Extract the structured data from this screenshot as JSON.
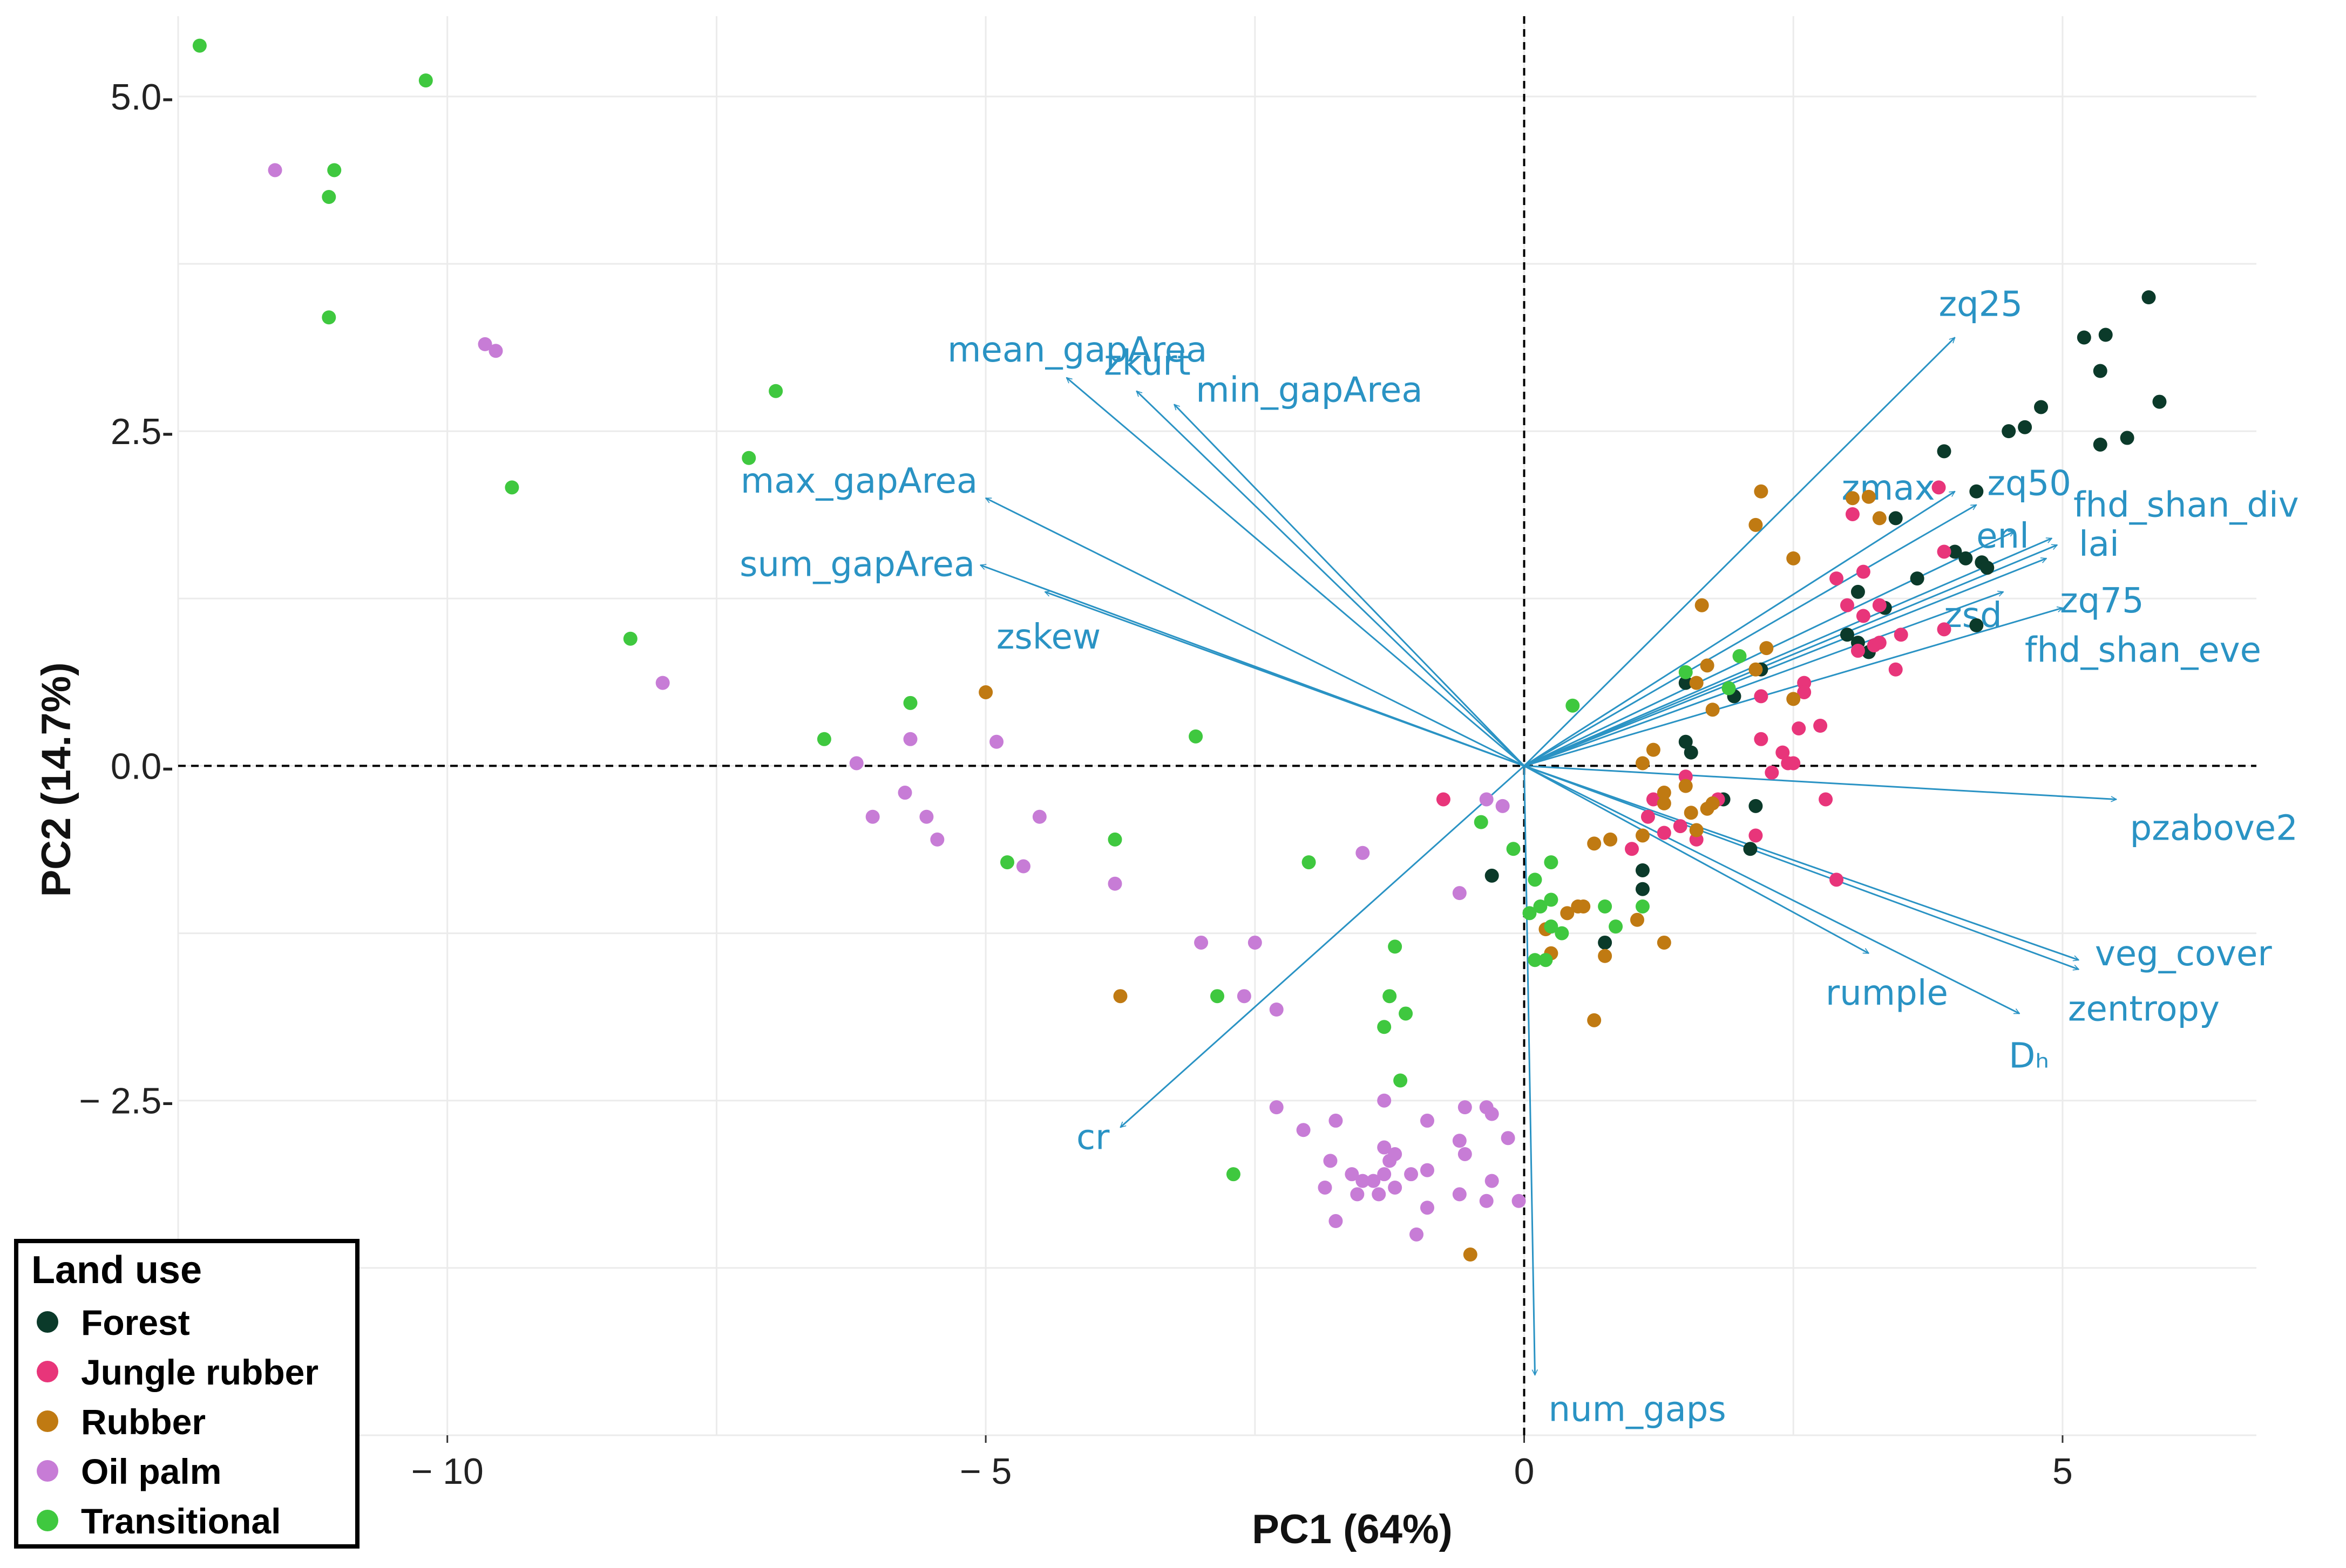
{
  "chart_data": {
    "type": "scatter",
    "subtype": "pca-biplot",
    "xlabel": "PC1 (64%)",
    "ylabel": "PC2 (14.7%)",
    "xlim": [
      -12.5,
      6.8
    ],
    "ylim": [
      -5.0,
      5.6
    ],
    "xticks": [
      -10,
      -5,
      0,
      5
    ],
    "xtick_labels": [
      "− 10",
      "− 5",
      "0",
      "5"
    ],
    "yticks": [
      -2.5,
      0.0,
      2.5,
      5.0
    ],
    "ytick_labels": [
      "− 2.5-",
      "0.0-",
      "2.5-",
      "5.0-"
    ],
    "zero_lines": "dashed",
    "legend": {
      "title": "Land use",
      "placement": "bottom-left",
      "entries": [
        {
          "key": "forest",
          "label": "Forest",
          "color": "#0b3a2a"
        },
        {
          "key": "jungle",
          "label": "Jungle rubber",
          "color": "#e8357a"
        },
        {
          "key": "rubber",
          "label": "Rubber",
          "color": "#c07a12"
        },
        {
          "key": "oilpalm",
          "label": "Oil palm",
          "color": "#c77cd6"
        },
        {
          "key": "transitional",
          "label": "Transitional",
          "color": "#3fc83f"
        }
      ]
    },
    "vector_color": "#2a93c4",
    "vectors": [
      {
        "label": "zq25",
        "x": 4.0,
        "y": 3.2
      },
      {
        "label": "zq50",
        "x": 4.2,
        "y": 1.95
      },
      {
        "label": "zmax",
        "x": 4.0,
        "y": 2.05
      },
      {
        "label": "enl",
        "x": 4.55,
        "y": 1.75
      },
      {
        "label": "fhd_shan_div",
        "x": 4.9,
        "y": 1.7
      },
      {
        "label": "lai",
        "x": 4.95,
        "y": 1.65
      },
      {
        "label": "zq75",
        "x": 4.85,
        "y": 1.55
      },
      {
        "label": "zsd",
        "x": 4.45,
        "y": 1.3
      },
      {
        "label": "fhd_shan_eve",
        "x": 5.0,
        "y": 1.18
      },
      {
        "label": "pzabove2",
        "x": 5.5,
        "y": -0.25
      },
      {
        "label": "veg_cover",
        "x": 5.15,
        "y": -1.45
      },
      {
        "label": "zentropy",
        "x": 5.15,
        "y": -1.52
      },
      {
        "label": "rumple",
        "x": 3.2,
        "y": -1.4
      },
      {
        "label": "Dₕ",
        "x": 4.6,
        "y": -1.85
      },
      {
        "label": "num_gaps",
        "x": 0.1,
        "y": -4.55
      },
      {
        "label": "cr",
        "x": -3.75,
        "y": -2.7
      },
      {
        "label": "zskew",
        "x": -4.45,
        "y": 1.3
      },
      {
        "label": "sum_gapArea",
        "x": -5.05,
        "y": 1.5
      },
      {
        "label": "max_gapArea",
        "x": -5.0,
        "y": 2.0
      },
      {
        "label": "mean_gapArea",
        "x": -4.25,
        "y": 2.9
      },
      {
        "label": "zkurt",
        "x": -3.6,
        "y": 2.8
      },
      {
        "label": "min_gapArea",
        "x": -3.25,
        "y": 2.7
      }
    ],
    "series": [
      {
        "name": "Forest",
        "points": [
          [
            5.8,
            3.5
          ],
          [
            5.2,
            3.2
          ],
          [
            5.4,
            3.22
          ],
          [
            5.35,
            2.95
          ],
          [
            4.8,
            2.68
          ],
          [
            4.65,
            2.53
          ],
          [
            5.35,
            2.4
          ],
          [
            5.6,
            2.45
          ],
          [
            5.9,
            2.72
          ],
          [
            4.5,
            2.5
          ],
          [
            3.9,
            2.35
          ],
          [
            4.2,
            2.05
          ],
          [
            3.45,
            1.85
          ],
          [
            4.0,
            1.6
          ],
          [
            4.1,
            1.55
          ],
          [
            4.25,
            1.52
          ],
          [
            4.3,
            1.48
          ],
          [
            3.65,
            1.4
          ],
          [
            3.1,
            1.3
          ],
          [
            3.35,
            1.18
          ],
          [
            4.2,
            1.05
          ],
          [
            3.1,
            0.92
          ],
          [
            3.0,
            0.98
          ],
          [
            3.2,
            0.85
          ],
          [
            2.2,
            0.72
          ],
          [
            1.95,
            0.52
          ],
          [
            1.5,
            0.62
          ],
          [
            1.5,
            0.18
          ],
          [
            1.55,
            0.1
          ],
          [
            1.85,
            -0.25
          ],
          [
            2.15,
            -0.3
          ],
          [
            2.1,
            -0.62
          ],
          [
            1.1,
            -0.78
          ],
          [
            1.1,
            -0.92
          ],
          [
            0.75,
            -1.32
          ],
          [
            -0.3,
            -0.82
          ]
        ]
      },
      {
        "name": "Jungle rubber",
        "points": [
          [
            3.85,
            2.08
          ],
          [
            3.05,
            1.88
          ],
          [
            3.9,
            1.6
          ],
          [
            3.15,
            1.45
          ],
          [
            2.9,
            1.4
          ],
          [
            3.3,
            1.2
          ],
          [
            3.0,
            1.2
          ],
          [
            3.15,
            1.12
          ],
          [
            3.9,
            1.02
          ],
          [
            3.5,
            0.98
          ],
          [
            3.1,
            0.86
          ],
          [
            3.25,
            0.9
          ],
          [
            3.45,
            0.72
          ],
          [
            3.3,
            0.92
          ],
          [
            2.6,
            0.62
          ],
          [
            2.6,
            0.55
          ],
          [
            2.2,
            0.52
          ],
          [
            2.55,
            0.28
          ],
          [
            2.75,
            0.3
          ],
          [
            2.2,
            0.2
          ],
          [
            2.4,
            0.1
          ],
          [
            2.5,
            0.02
          ],
          [
            2.45,
            0.02
          ],
          [
            2.3,
            -0.05
          ],
          [
            2.8,
            -0.25
          ],
          [
            1.5,
            -0.08
          ],
          [
            1.8,
            -0.25
          ],
          [
            1.2,
            -0.25
          ],
          [
            1.15,
            -0.38
          ],
          [
            1.3,
            -0.5
          ],
          [
            1.6,
            -0.55
          ],
          [
            1.0,
            -0.62
          ],
          [
            1.45,
            -0.45
          ],
          [
            2.15,
            -0.52
          ],
          [
            2.9,
            -0.85
          ],
          [
            -0.75,
            -0.25
          ]
        ]
      },
      {
        "name": "Rubber",
        "points": [
          [
            2.2,
            2.05
          ],
          [
            2.15,
            1.8
          ],
          [
            3.05,
            2.0
          ],
          [
            3.2,
            2.01
          ],
          [
            3.3,
            1.85
          ],
          [
            2.5,
            1.55
          ],
          [
            1.65,
            1.2
          ],
          [
            1.7,
            0.75
          ],
          [
            2.25,
            0.88
          ],
          [
            2.15,
            0.72
          ],
          [
            2.5,
            0.5
          ],
          [
            1.6,
            0.62
          ],
          [
            1.75,
            0.42
          ],
          [
            1.2,
            0.12
          ],
          [
            1.1,
            0.02
          ],
          [
            1.5,
            -0.15
          ],
          [
            1.3,
            -0.2
          ],
          [
            1.3,
            -0.28
          ],
          [
            1.55,
            -0.35
          ],
          [
            1.7,
            -0.32
          ],
          [
            1.75,
            -0.28
          ],
          [
            1.6,
            -0.48
          ],
          [
            1.1,
            -0.52
          ],
          [
            0.65,
            -0.58
          ],
          [
            0.8,
            -0.55
          ],
          [
            0.5,
            -1.05
          ],
          [
            0.55,
            -1.05
          ],
          [
            0.4,
            -1.1
          ],
          [
            1.05,
            -1.15
          ],
          [
            1.3,
            -1.32
          ],
          [
            0.75,
            -1.42
          ],
          [
            0.2,
            -1.22
          ],
          [
            0.25,
            -1.4
          ],
          [
            0.65,
            -1.9
          ],
          [
            -5.0,
            0.55
          ],
          [
            -3.75,
            -1.72
          ],
          [
            -0.5,
            -3.65
          ]
        ]
      },
      {
        "name": "Oil palm",
        "points": [
          [
            -11.6,
            4.45
          ],
          [
            -9.65,
            3.15
          ],
          [
            -9.55,
            3.1
          ],
          [
            -8.0,
            0.62
          ],
          [
            -5.7,
            0.2
          ],
          [
            -4.9,
            0.18
          ],
          [
            -6.2,
            0.02
          ],
          [
            -6.05,
            -0.38
          ],
          [
            -5.75,
            -0.2
          ],
          [
            -5.55,
            -0.38
          ],
          [
            -5.45,
            -0.55
          ],
          [
            -4.65,
            -0.75
          ],
          [
            -4.5,
            -0.38
          ],
          [
            -3.8,
            -0.88
          ],
          [
            -3.0,
            -1.32
          ],
          [
            -2.5,
            -1.32
          ],
          [
            -2.6,
            -1.72
          ],
          [
            -2.3,
            -1.82
          ],
          [
            -1.5,
            -0.65
          ],
          [
            -0.6,
            -0.95
          ],
          [
            -0.35,
            -0.25
          ],
          [
            -0.2,
            -0.3
          ],
          [
            -2.3,
            -2.55
          ],
          [
            -2.05,
            -2.72
          ],
          [
            -1.8,
            -2.95
          ],
          [
            -1.75,
            -2.65
          ],
          [
            -1.6,
            -3.05
          ],
          [
            -1.3,
            -2.5
          ],
          [
            -1.3,
            -2.85
          ],
          [
            -1.35,
            -3.2
          ],
          [
            -1.4,
            -3.1
          ],
          [
            -1.2,
            -3.15
          ],
          [
            -1.5,
            -3.1
          ],
          [
            -1.2,
            -2.9
          ],
          [
            -0.9,
            -3.02
          ],
          [
            -0.9,
            -2.65
          ],
          [
            -0.55,
            -2.55
          ],
          [
            -0.6,
            -2.8
          ],
          [
            -0.55,
            -2.9
          ],
          [
            -0.35,
            -2.55
          ],
          [
            -0.3,
            -2.6
          ],
          [
            -0.15,
            -2.78
          ],
          [
            -0.3,
            -3.1
          ],
          [
            -0.6,
            -3.2
          ],
          [
            -1.05,
            -3.05
          ],
          [
            -1.3,
            -3.05
          ],
          [
            -1.85,
            -3.15
          ],
          [
            -1.55,
            -3.2
          ],
          [
            -0.9,
            -3.3
          ],
          [
            -1.0,
            -3.5
          ],
          [
            -1.75,
            -3.4
          ],
          [
            -0.35,
            -3.25
          ],
          [
            -0.05,
            -3.25
          ],
          [
            -1.25,
            -2.95
          ]
        ]
      },
      {
        "name": "Transitional",
        "points": [
          [
            -12.3,
            5.38
          ],
          [
            -10.2,
            5.12
          ],
          [
            -11.05,
            4.45
          ],
          [
            -11.1,
            4.25
          ],
          [
            -11.1,
            3.35
          ],
          [
            -6.95,
            2.8
          ],
          [
            -7.2,
            2.3
          ],
          [
            -9.4,
            2.08
          ],
          [
            -8.3,
            0.95
          ],
          [
            -5.7,
            0.47
          ],
          [
            -6.5,
            0.2
          ],
          [
            -3.05,
            0.22
          ],
          [
            -4.8,
            -0.72
          ],
          [
            -3.8,
            -0.55
          ],
          [
            -2.0,
            -0.72
          ],
          [
            -2.85,
            -1.72
          ],
          [
            -2.7,
            -3.05
          ],
          [
            -1.25,
            -1.72
          ],
          [
            -1.1,
            -1.85
          ],
          [
            -1.3,
            -1.95
          ],
          [
            -1.15,
            -2.35
          ],
          [
            -1.2,
            -1.35
          ],
          [
            -0.4,
            -0.42
          ],
          [
            -0.1,
            -0.62
          ],
          [
            0.25,
            -0.72
          ],
          [
            0.1,
            -0.85
          ],
          [
            0.25,
            -1.0
          ],
          [
            0.15,
            -1.05
          ],
          [
            0.05,
            -1.1
          ],
          [
            0.25,
            -1.2
          ],
          [
            0.35,
            -1.25
          ],
          [
            0.1,
            -1.45
          ],
          [
            0.2,
            -1.45
          ],
          [
            0.75,
            -1.05
          ],
          [
            0.85,
            -1.2
          ],
          [
            1.1,
            -1.05
          ],
          [
            0.45,
            0.45
          ],
          [
            1.5,
            0.7
          ],
          [
            1.9,
            0.58
          ],
          [
            2.0,
            0.82
          ]
        ]
      }
    ]
  }
}
